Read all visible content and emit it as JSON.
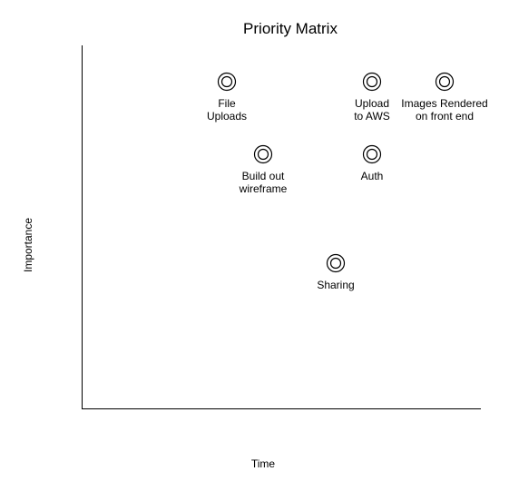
{
  "title": "Priority Matrix",
  "x_axis_label": "Time",
  "y_axis_label": "Importance",
  "items": [
    {
      "lines": [
        "File",
        "Uploads"
      ]
    },
    {
      "lines": [
        "Upload",
        "to AWS"
      ]
    },
    {
      "lines": [
        "Images Rendered",
        "on front end"
      ]
    },
    {
      "lines": [
        "Build out",
        "wireframe"
      ]
    },
    {
      "lines": [
        "Auth"
      ]
    },
    {
      "lines": [
        "Sharing"
      ]
    }
  ]
}
